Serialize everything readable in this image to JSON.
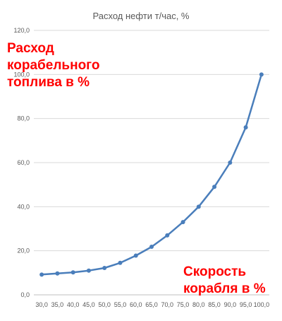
{
  "chart_data": {
    "type": "line",
    "title": "Расход нефти т/час, %",
    "xlabel": "Скорость корабля в %",
    "ylabel": "Расход корабельного топлива в %",
    "categories": [
      "30,0",
      "35,0",
      "40,0",
      "45,0",
      "50,0",
      "55,0",
      "60,0",
      "65,0",
      "70,0",
      "75,0",
      "80,0",
      "85,0",
      "90,0",
      "95,0",
      "100,0"
    ],
    "series": [
      {
        "values": [
          9.2,
          9.7,
          10.2,
          11.0,
          12.2,
          14.5,
          17.8,
          21.8,
          27.0,
          33.0,
          40.0,
          49.0,
          60.0,
          76.0,
          100.0
        ]
      }
    ],
    "y_ticks": [
      "0,0",
      "20,0",
      "40,0",
      "60,0",
      "80,0",
      "100,0",
      "120,0"
    ],
    "ylim": [
      0,
      120
    ],
    "grid": true,
    "legend": "none"
  },
  "annotations": {
    "ylabel_lines": [
      "Расход",
      "корабельного",
      "топлива в %"
    ],
    "xlabel_lines": [
      "Скорость",
      "корабля в %"
    ]
  },
  "colors": {
    "series": "#4a7ebb",
    "annotation": "#ff0000",
    "grid": "#d9d9d9",
    "text": "#595959"
  }
}
